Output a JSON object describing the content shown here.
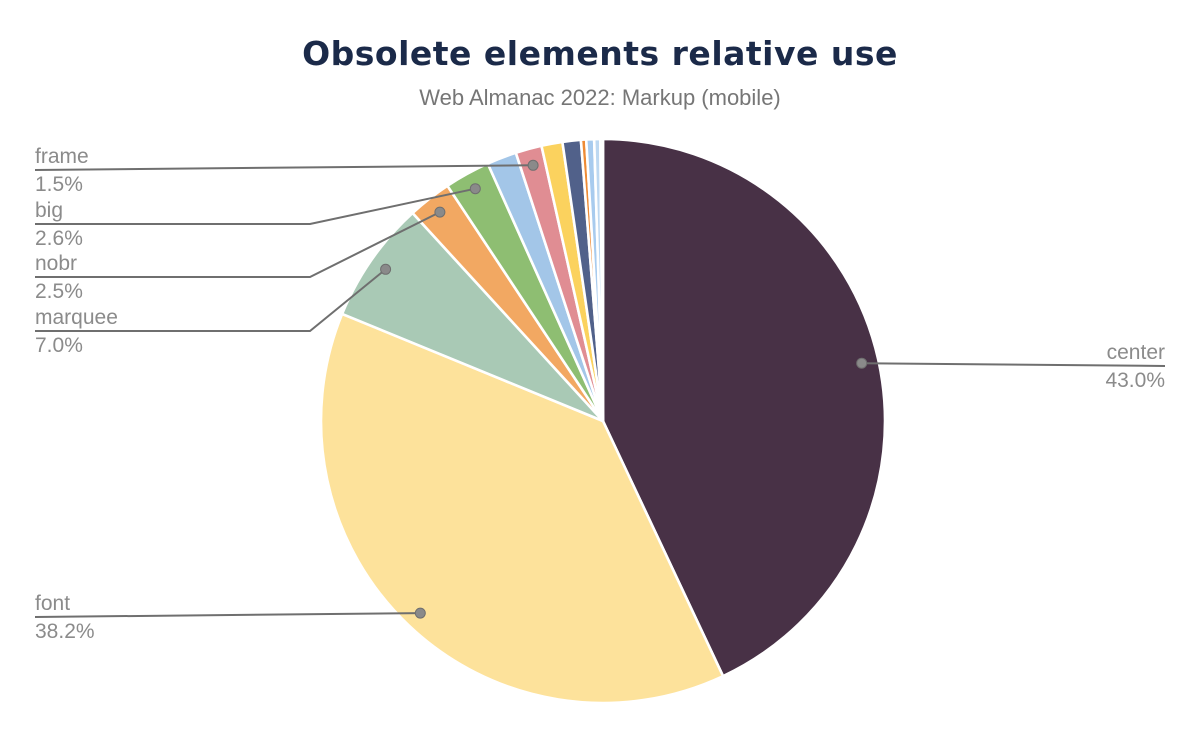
{
  "header": {
    "title": "Obsolete elements relative use",
    "subtitle": "Web Almanac 2022: Markup (mobile)"
  },
  "chart_data": {
    "type": "pie",
    "title": "Obsolete elements relative use",
    "subtitle": "Web Almanac 2022: Markup (mobile)",
    "start_angle_deg": 0,
    "direction": "clockwise",
    "legend": "none",
    "label_style": "callout-lines-with-dots",
    "label_color": "#8b8b8b",
    "line_color": "#6f6f6f",
    "title_color": "#1b2a49",
    "subtitle_color": "#767676",
    "slices": [
      {
        "label": "center",
        "pct_text": "43.0%",
        "value": 43.0,
        "color": "#483146",
        "callout_side": "right"
      },
      {
        "label": "font",
        "pct_text": "38.2%",
        "value": 38.2,
        "color": "#FDE29B",
        "callout_side": "left"
      },
      {
        "label": "marquee",
        "pct_text": "7.0%",
        "value": 7.0,
        "color": "#A9C9B5",
        "callout_side": "left"
      },
      {
        "label": "nobr",
        "pct_text": "2.5%",
        "value": 2.5,
        "color": "#F2A862",
        "callout_side": "left"
      },
      {
        "label": "big",
        "pct_text": "2.6%",
        "value": 2.6,
        "color": "#8EBE72",
        "callout_side": "left"
      },
      {
        "label": "",
        "pct_text": "",
        "value": 1.7,
        "color": "#A3C6E8",
        "callout_side": null
      },
      {
        "label": "frame",
        "pct_text": "1.5%",
        "value": 1.5,
        "color": "#E08D93",
        "callout_side": "left"
      },
      {
        "label": "",
        "pct_text": "",
        "value": 1.2,
        "color": "#FBD25E",
        "callout_side": null
      },
      {
        "label": "",
        "pct_text": "",
        "value": 1.05,
        "color": "#51618A",
        "callout_side": null
      },
      {
        "label": "",
        "pct_text": "",
        "value": 0.3,
        "color": "#EE8B35",
        "callout_side": null
      },
      {
        "label": "",
        "pct_text": "",
        "value": 0.45,
        "color": "#A8CBEE",
        "callout_side": null
      },
      {
        "label": "",
        "pct_text": "",
        "value": 0.35,
        "color": "#BDD8F1",
        "callout_side": null
      },
      {
        "label": "",
        "pct_text": "",
        "value": 0.15,
        "color": "#9FC5E8",
        "callout_side": null
      }
    ]
  }
}
